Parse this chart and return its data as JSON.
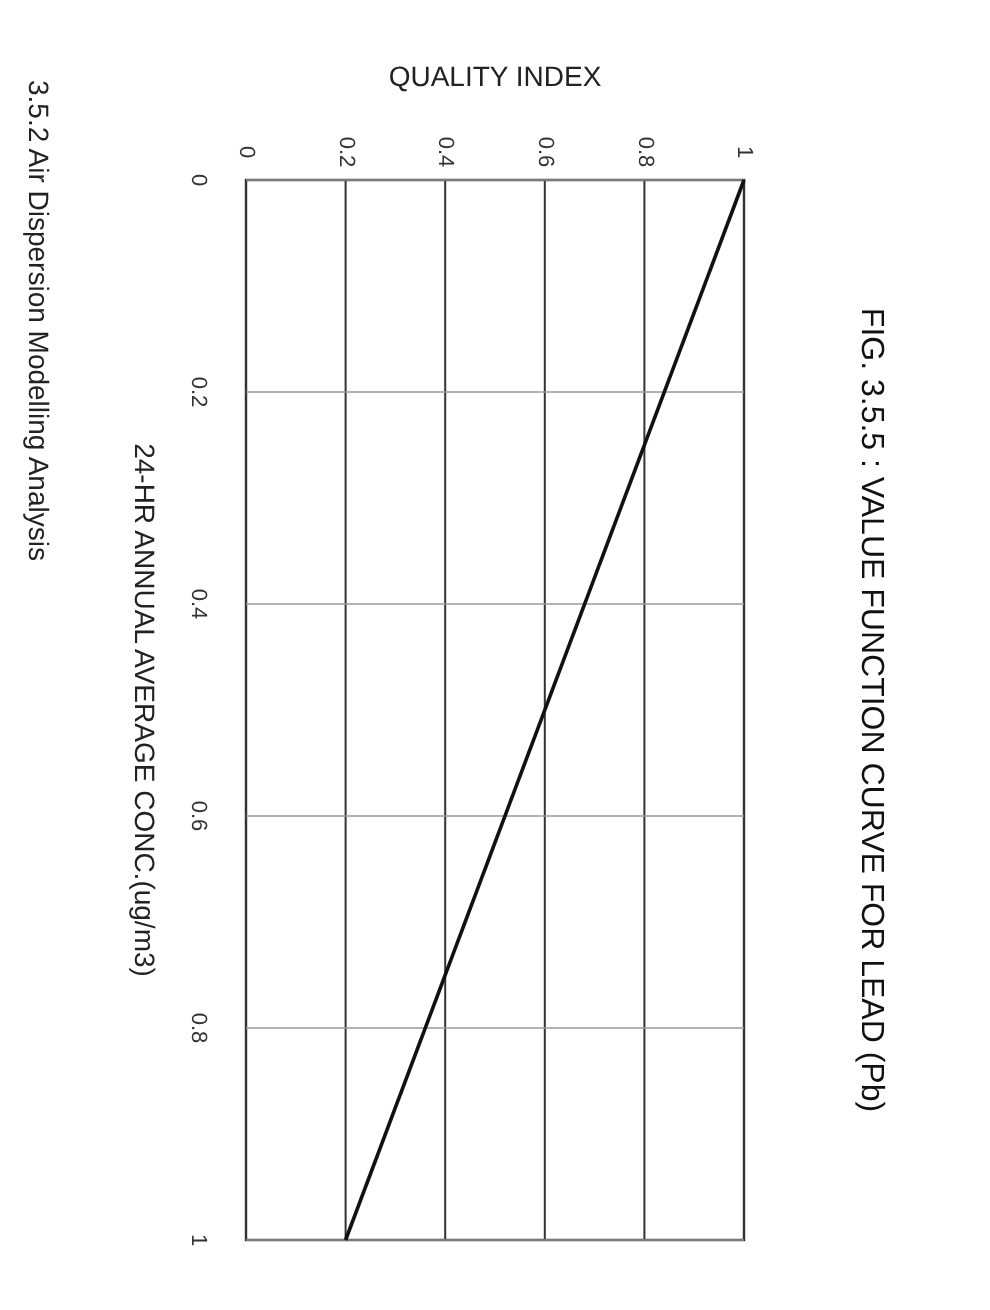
{
  "chart_data": {
    "type": "line",
    "title": "FIG. 3.5.5 : VALUE FUNCTION CURVE FOR LEAD (Pb)",
    "xlabel": "QUALITY INDEX",
    "ylabel": "24-HR ANNUAL AVERAGE CONC.(ug/m3)",
    "annotations": [
      "3.5.2  Air Dispersion Modelling Analysis"
    ],
    "x": [
      1,
      0.2
    ],
    "series": [
      {
        "color": "#111111",
        "values": [
          0,
          1
        ]
      }
    ],
    "xlim": [
      0,
      1
    ],
    "ylim": [
      1,
      0
    ],
    "xticks": [
      0,
      0.2,
      0.4,
      0.6,
      0.8,
      1
    ],
    "yticks": [
      0,
      0.2,
      0.4,
      0.6,
      0.8,
      1
    ],
    "grid": true,
    "marker": "none",
    "line_style": "solid"
  }
}
